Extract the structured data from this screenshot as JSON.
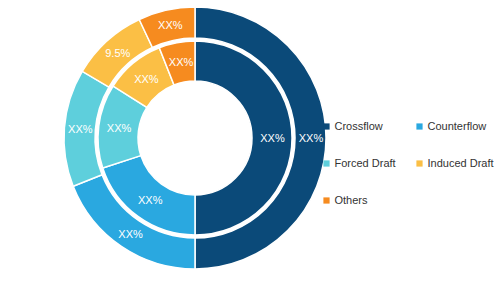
{
  "chart_data": {
    "type": "pie",
    "categories": [
      "Crossflow",
      "Counterflow",
      "Forced Draft",
      "Induced Draft",
      "Others"
    ],
    "colors": [
      "#0b4a79",
      "#2aa8e0",
      "#5ecfdc",
      "#fbbf45",
      "#f68b1f"
    ],
    "series": [
      {
        "values": [
          50,
          19,
          14.5,
          9.5,
          7
        ],
        "value_labels": [
          "XX%",
          "XX%",
          "XX%",
          "9.5%",
          "XX%"
        ]
      },
      {
        "values": [
          50,
          20,
          14,
          10,
          6
        ],
        "value_labels": [
          "XX%",
          "XX%",
          "XX%",
          "XX%",
          "XX%"
        ]
      }
    ],
    "data_labels": true,
    "legend": "right"
  }
}
